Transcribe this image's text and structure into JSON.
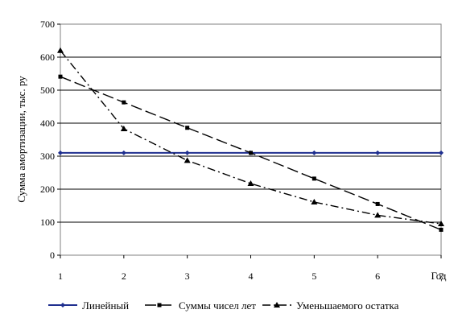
{
  "chart_data": {
    "type": "line",
    "title": "",
    "xlabel": "Год",
    "ylabel": "Сумма амортизации, тыс. ру",
    "x": [
      1,
      2,
      3,
      4,
      5,
      6,
      7
    ],
    "xlim": [
      1,
      7
    ],
    "ylim": [
      0,
      700
    ],
    "yticks": [
      0,
      100,
      200,
      300,
      400,
      500,
      600,
      700
    ],
    "grid": "horizontal",
    "legend_position": "bottom",
    "series": [
      {
        "name": "Линейный",
        "values": [
          310,
          310,
          310,
          310,
          310,
          310,
          310
        ],
        "color": "#1f2f8f",
        "dash": "solid",
        "marker": "diamond"
      },
      {
        "name": "Суммы чисел лет",
        "values": [
          541,
          463,
          386,
          310,
          232,
          155,
          77
        ],
        "color": "#000000",
        "dash": "long-dash",
        "marker": "square"
      },
      {
        "name": "Уменьшаемого остатка",
        "values": [
          620,
          383,
          287,
          217,
          161,
          121,
          95
        ],
        "color": "#000000",
        "dash": "dash-dot",
        "marker": "triangle"
      }
    ]
  }
}
